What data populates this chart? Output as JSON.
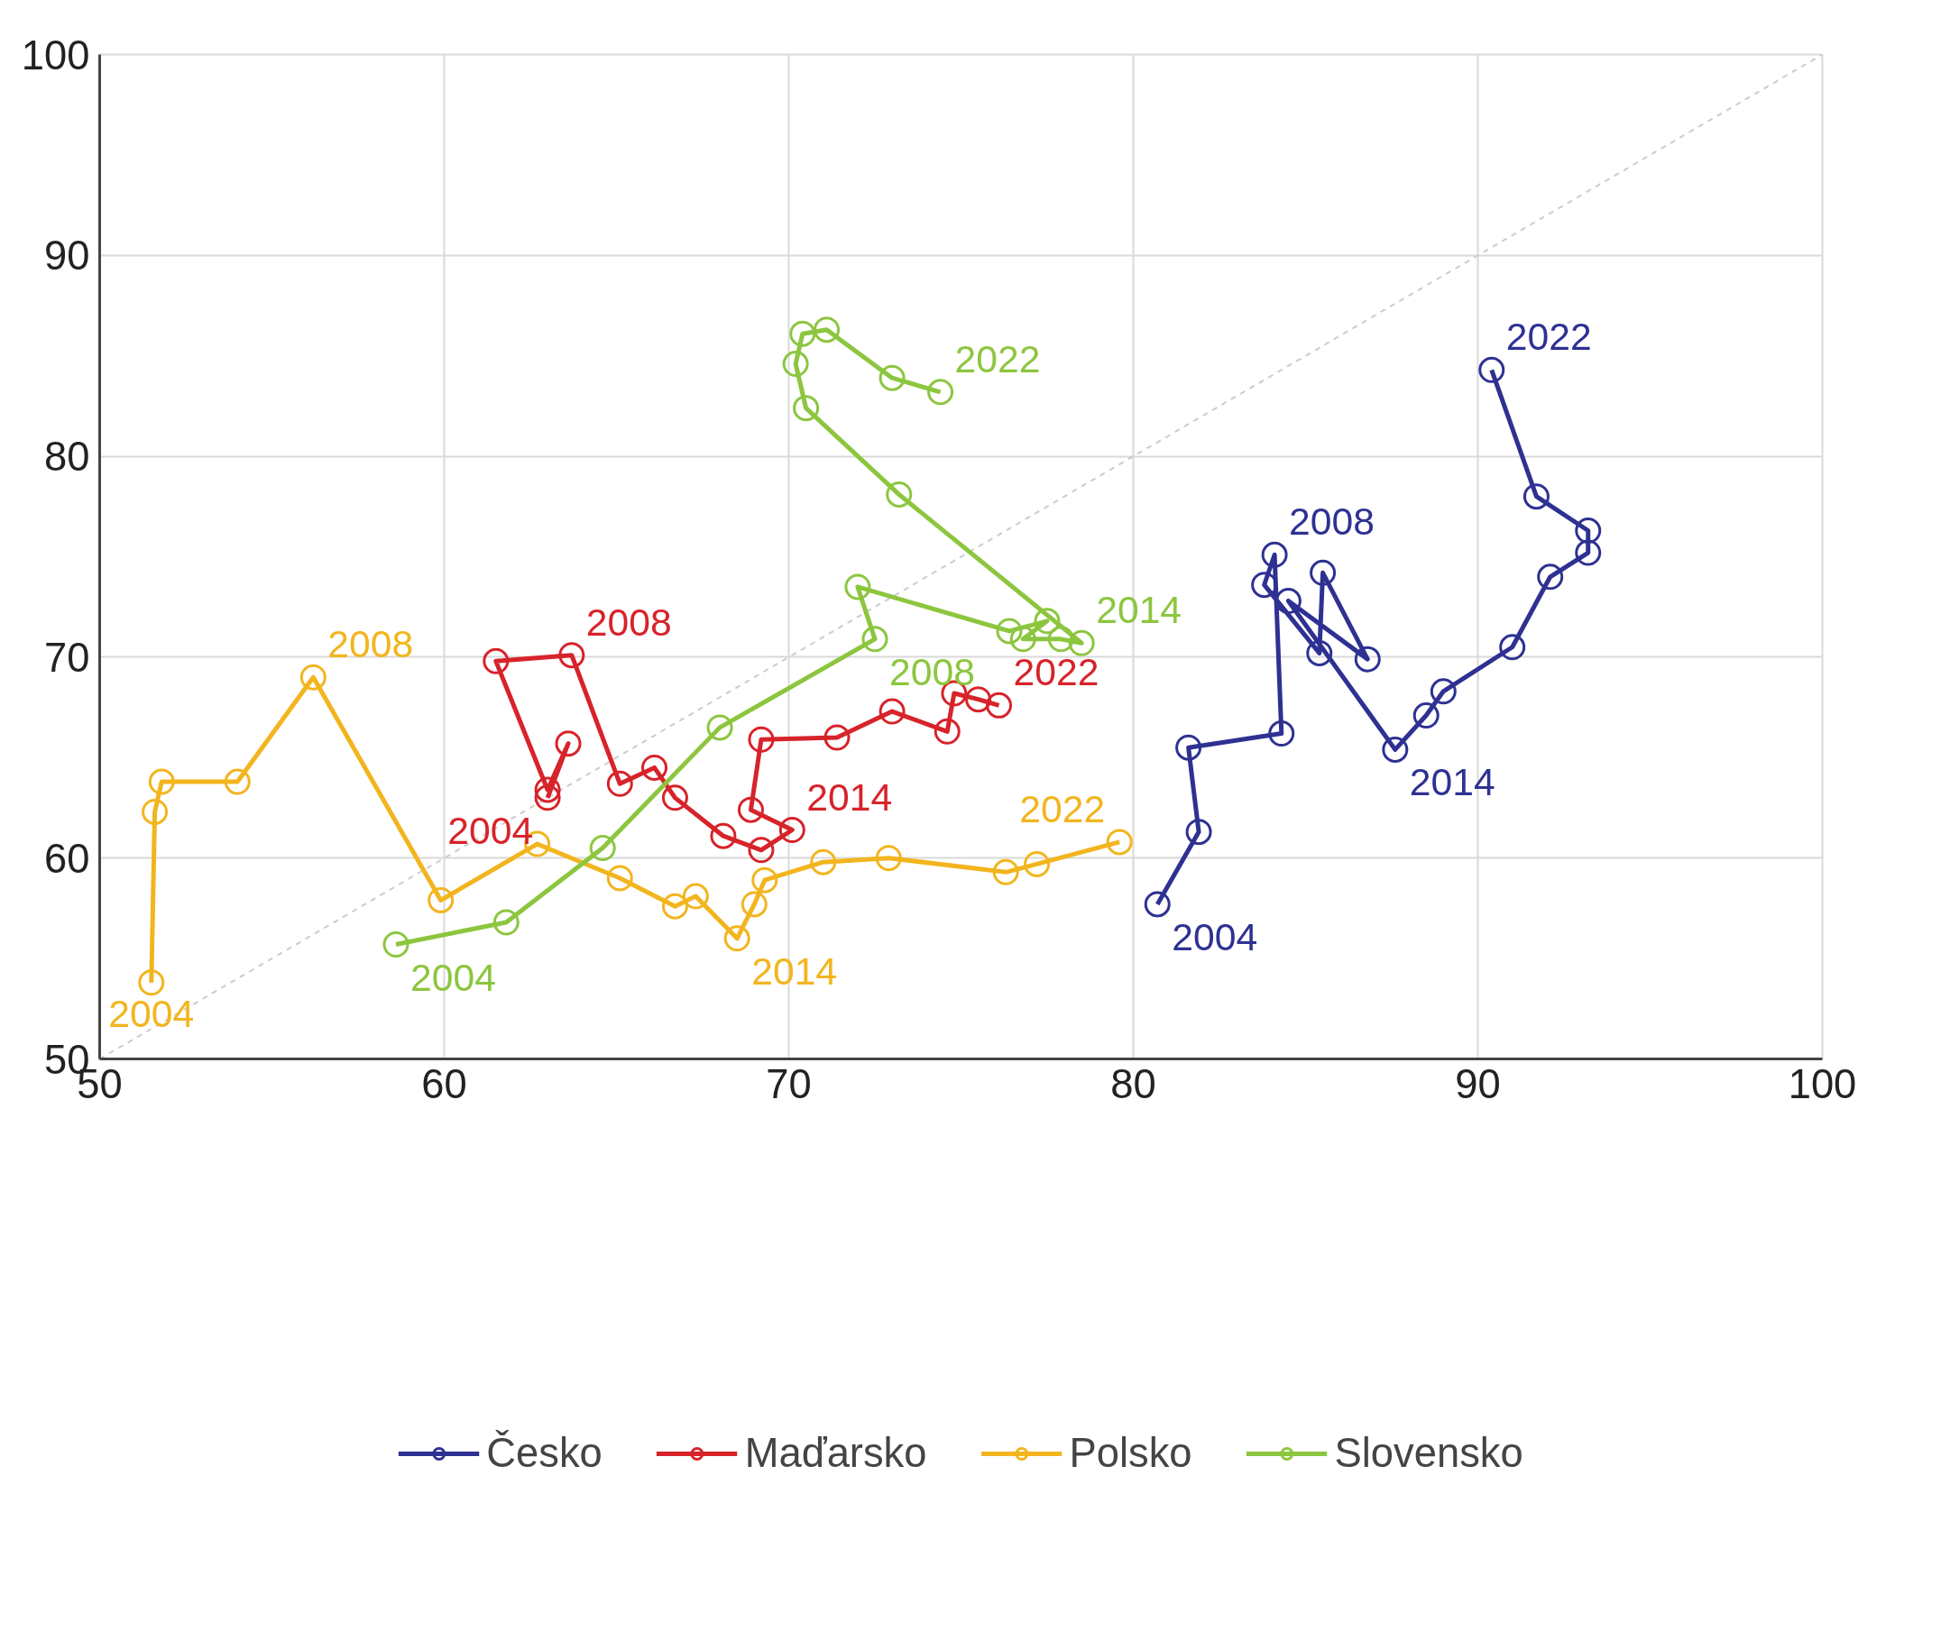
{
  "chart_data": {
    "type": "line",
    "marker": "circle",
    "line_style": "solid",
    "grid": true,
    "legend": "bottom",
    "xlim": [
      50,
      100
    ],
    "ylim": [
      50,
      100
    ],
    "xticks": [
      50,
      60,
      70,
      80,
      90,
      100
    ],
    "yticks": [
      50,
      60,
      70,
      80,
      90,
      100
    ],
    "series": [
      {
        "type": "line",
        "marker": "none",
        "line_style": "dashed",
        "color": "#cccccc",
        "x": [
          50,
          100
        ],
        "values": [
          50,
          100
        ]
      },
      {
        "name": "Česko",
        "color": "#2e3192",
        "x": [
          80.7,
          81.9,
          81.6,
          84.3,
          84.1,
          83.8,
          85.4,
          85.5,
          86.8,
          84.5,
          87.6,
          88.5,
          89.0,
          91.0,
          92.1,
          93.2,
          93.2,
          91.7,
          90.4
        ],
        "values": [
          57.7,
          61.3,
          65.5,
          66.2,
          75.1,
          73.6,
          70.2,
          74.2,
          69.9,
          72.8,
          65.4,
          67.1,
          68.3,
          70.5,
          74.0,
          75.2,
          76.3,
          78.0,
          84.3
        ]
      },
      {
        "name": "Maďarsko",
        "color": "#d7232a",
        "x": [
          63.0,
          63.6,
          63.0,
          61.5,
          63.7,
          65.1,
          66.1,
          66.7,
          68.1,
          69.2,
          70.1,
          68.9,
          69.2,
          71.4,
          73.0,
          74.6,
          74.8,
          75.5,
          76.1
        ],
        "values": [
          63.0,
          65.7,
          63.4,
          69.8,
          70.1,
          63.7,
          64.5,
          63.0,
          61.1,
          60.4,
          61.4,
          62.4,
          65.9,
          66.0,
          67.3,
          66.3,
          68.2,
          67.9,
          67.6
        ]
      },
      {
        "name": "Polsko",
        "color": "#f2b51e",
        "x": [
          51.5,
          51.6,
          51.8,
          54.0,
          56.2,
          59.9,
          62.7,
          65.1,
          66.7,
          67.3,
          68.5,
          69.0,
          69.3,
          71.0,
          72.9,
          76.3,
          77.2,
          79.6
        ],
        "values": [
          53.8,
          62.3,
          63.8,
          63.8,
          69.0,
          57.9,
          60.7,
          59.0,
          57.6,
          58.1,
          56.0,
          57.7,
          58.9,
          59.8,
          60.0,
          59.3,
          59.7,
          60.8
        ]
      },
      {
        "name": "Slovensko",
        "color": "#8cc63f",
        "x": [
          58.6,
          61.8,
          64.6,
          68.0,
          72.5,
          72.0,
          76.4,
          77.5,
          76.8,
          77.9,
          78.5,
          73.2,
          70.5,
          70.2,
          70.4,
          71.1,
          73.0,
          74.4
        ],
        "values": [
          55.7,
          56.8,
          60.5,
          66.5,
          70.9,
          73.5,
          71.3,
          71.8,
          70.9,
          70.9,
          70.7,
          78.1,
          82.4,
          84.6,
          86.1,
          86.3,
          83.9,
          83.2
        ]
      }
    ],
    "annotations": [
      {
        "text": "2004",
        "x": 80.7,
        "y": 57.7
      },
      {
        "text": "2008",
        "x": 84.1,
        "y": 75.1
      },
      {
        "text": "2014",
        "x": 87.6,
        "y": 65.4
      },
      {
        "text": "2022",
        "x": 90.4,
        "y": 84.3
      },
      {
        "text": "2004",
        "x": 63.0,
        "y": 63.0
      },
      {
        "text": "2008",
        "x": 63.7,
        "y": 70.1
      },
      {
        "text": "2014",
        "x": 70.1,
        "y": 61.4
      },
      {
        "text": "2022",
        "x": 76.1,
        "y": 67.6
      },
      {
        "text": "2004",
        "x": 51.5,
        "y": 53.8
      },
      {
        "text": "2008",
        "x": 56.2,
        "y": 69.0
      },
      {
        "text": "2014",
        "x": 68.5,
        "y": 56.0
      },
      {
        "text": "2022",
        "x": 79.6,
        "y": 60.8
      },
      {
        "text": "2004",
        "x": 58.6,
        "y": 55.7
      },
      {
        "text": "2008",
        "x": 72.5,
        "y": 70.9
      },
      {
        "text": "2014",
        "x": 78.5,
        "y": 70.7
      },
      {
        "text": "2022",
        "x": 74.4,
        "y": 83.2
      }
    ]
  }
}
